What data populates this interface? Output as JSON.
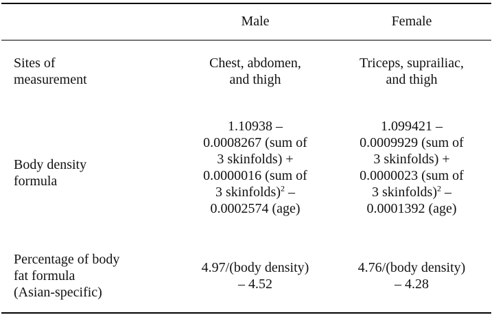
{
  "table": {
    "headers": [
      "",
      "Male",
      "Female"
    ],
    "rows": [
      {
        "label": [
          "Sites of",
          "measurement"
        ],
        "male": [
          "Chest, abdomen,",
          "and thigh"
        ],
        "female": [
          "Triceps, suprailiac,",
          "and thigh"
        ]
      },
      {
        "label": [
          "Body density",
          "formula"
        ],
        "male": [
          "1.10938 –",
          "0.0008267 (sum of",
          "3 skinfolds) +",
          "0.0000016 (sum of",
          "3 skinfolds)",
          "–",
          "0.0002574 (age)"
        ],
        "female": [
          "1.099421 –",
          "0.0009929 (sum of",
          "3 skinfolds) +",
          "0.0000023 (sum of",
          "3 skinfolds)",
          "–",
          "0.0001392 (age)"
        ],
        "exponent": "2"
      },
      {
        "label": [
          "Percentage of body",
          "fat formula",
          "(Asian-specific)"
        ],
        "male": [
          "4.97/(body density)",
          "– 4.52"
        ],
        "female": [
          "4.76/(body density)",
          "– 4.28"
        ]
      }
    ]
  }
}
